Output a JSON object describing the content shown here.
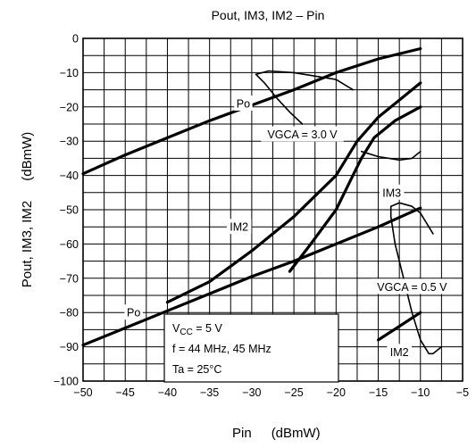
{
  "chart_data": {
    "type": "line",
    "title": "Pout, IM3, IM2 – Pin",
    "xlabel": "Pin",
    "xunit": "(dBmW)",
    "ylabel": "Pout, IM3, IM2",
    "yunit": "(dBmW)",
    "xlim": [
      -50,
      -5
    ],
    "ylim": [
      -100,
      0
    ],
    "x_ticks": [
      "−50",
      "−45",
      "−40",
      "−35",
      "−30",
      "−25",
      "−20",
      "−15",
      "−10",
      "−5"
    ],
    "y_ticks": [
      "0",
      "−10",
      "−20",
      "−30",
      "−40",
      "−50",
      "−60",
      "−70",
      "−80",
      "−90",
      "−100"
    ],
    "grid": true,
    "series": [
      {
        "name": "Po",
        "condition": "VGCA = 3.0 V",
        "points": [
          [
            -50,
            -39.5
          ],
          [
            -45,
            -34
          ],
          [
            -40,
            -29
          ],
          [
            -35,
            -24
          ],
          [
            -30,
            -19.5
          ],
          [
            -25,
            -15
          ],
          [
            -20,
            -10
          ],
          [
            -15,
            -6
          ],
          [
            -10,
            -3
          ]
        ]
      },
      {
        "name": "IM2",
        "condition": "VGCA = 3.0 V",
        "points": [
          [
            -40,
            -77
          ],
          [
            -35,
            -71
          ],
          [
            -30,
            -62
          ],
          [
            -25,
            -52
          ],
          [
            -20,
            -40
          ],
          [
            -17.5,
            -30
          ],
          [
            -15,
            -23
          ],
          [
            -12.5,
            -18
          ],
          [
            -10,
            -13
          ]
        ]
      },
      {
        "name": "IM3",
        "condition": "VGCA = 3.0 V",
        "points": [
          [
            -25.5,
            -68
          ],
          [
            -23,
            -60
          ],
          [
            -20,
            -50
          ],
          [
            -18,
            -40
          ],
          [
            -17,
            -35
          ],
          [
            -15.5,
            -29
          ],
          [
            -13,
            -24
          ],
          [
            -10,
            -20
          ]
        ]
      },
      {
        "name": "Po",
        "condition": "VGCA = 0.5 V",
        "points": [
          [
            -50,
            -89.5
          ],
          [
            -45,
            -84.5
          ],
          [
            -40,
            -79.5
          ],
          [
            -35,
            -74.5
          ],
          [
            -30,
            -69.5
          ],
          [
            -25,
            -65
          ],
          [
            -20,
            -60
          ],
          [
            -15,
            -55
          ],
          [
            -10,
            -49.5
          ]
        ]
      },
      {
        "name": "IM3",
        "condition": "VGCA = 0.5 V",
        "points": [
          [
            -13.5,
            -52
          ],
          [
            -13.5,
            -49
          ],
          [
            -12.5,
            -48
          ],
          [
            -11,
            -49
          ],
          [
            -10,
            -51
          ],
          [
            -8.5,
            -57
          ]
        ]
      },
      {
        "name": "IM2",
        "condition": "VGCA = 0.5 V",
        "points": [
          [
            -15,
            -88
          ],
          [
            -12.5,
            -84
          ],
          [
            -10,
            -80
          ]
        ]
      }
    ],
    "extra_curves": [
      {
        "condition": "VGCA = 3.0 V",
        "points": [
          [
            -29.5,
            -10.5
          ],
          [
            -28.5,
            -13
          ],
          [
            -27,
            -17.5
          ],
          [
            -25.5,
            -21.5
          ],
          [
            -24,
            -25
          ]
        ]
      },
      {
        "condition": "VGCA = 3.0 V",
        "points": [
          [
            -29.5,
            -10.5
          ],
          [
            -28,
            -9.5
          ],
          [
            -25,
            -10
          ],
          [
            -20,
            -12
          ],
          [
            -18,
            -15
          ]
        ]
      },
      {
        "condition": "VGCA = 3.0 V",
        "points": [
          [
            -17,
            -33
          ],
          [
            -15,
            -34.5
          ],
          [
            -12.5,
            -35.5
          ],
          [
            -11,
            -35
          ],
          [
            -10,
            -33
          ]
        ]
      },
      {
        "condition": "VGCA = 0.5 V",
        "points": [
          [
            -13.5,
            -52
          ],
          [
            -13,
            -60
          ],
          [
            -12,
            -70
          ],
          [
            -11,
            -80
          ],
          [
            -10,
            -88
          ],
          [
            -9,
            -92
          ],
          [
            -8.5,
            -92
          ],
          [
            -7.5,
            -90
          ]
        ]
      }
    ],
    "labels": {
      "po_upper": "Po",
      "vgca_high": "VGCA = 3.0 V",
      "im3_upper": "IM3",
      "im2_upper": "IM2",
      "vgca_low": "VGCA = 0.5 V",
      "po_lower": "Po",
      "im2_lower": "IM2"
    },
    "conditions": {
      "vcc_prefix": "V",
      "vcc_sub": "CC",
      "vcc_value": " = 5 V",
      "freq": "f = 44 MHz, 45 MHz",
      "ta": "Ta = 25°C"
    }
  }
}
